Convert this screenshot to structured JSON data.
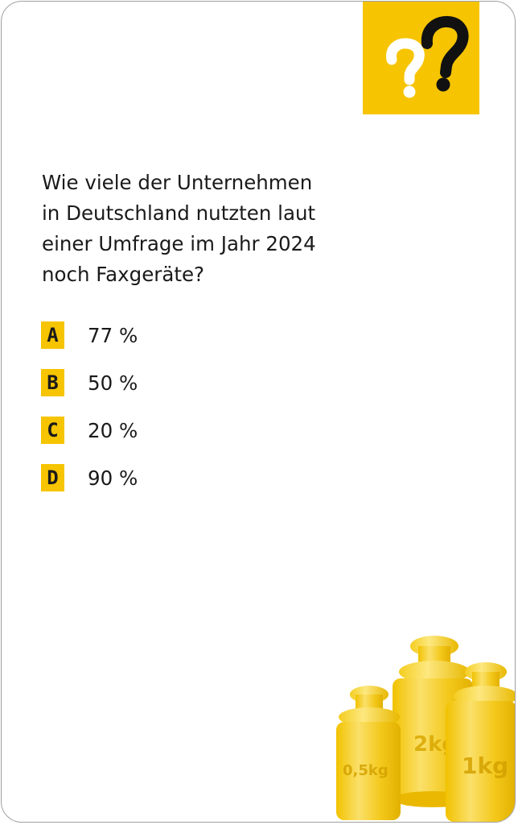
{
  "question": {
    "lines": [
      "Wie viele der Unternehmen",
      "in Deutschland nutzten laut",
      "einer Umfrage im Jahr 2024",
      "noch Faxgeräte?"
    ]
  },
  "answers": [
    {
      "letter": "A",
      "value": "77 %"
    },
    {
      "letter": "B",
      "value": "50 %"
    },
    {
      "letter": "C",
      "value": "20 %"
    },
    {
      "letter": "D",
      "value": "90 %"
    }
  ],
  "weights": {
    "small_label": "0,5kg",
    "middle_label": "2kg",
    "right_label": "1kg"
  },
  "colors": {
    "accent": "#f6c400",
    "text": "#1a1a1a"
  },
  "icons": {
    "badge": "question-marks-icon",
    "illustration": "kilogram-weights-icon"
  }
}
